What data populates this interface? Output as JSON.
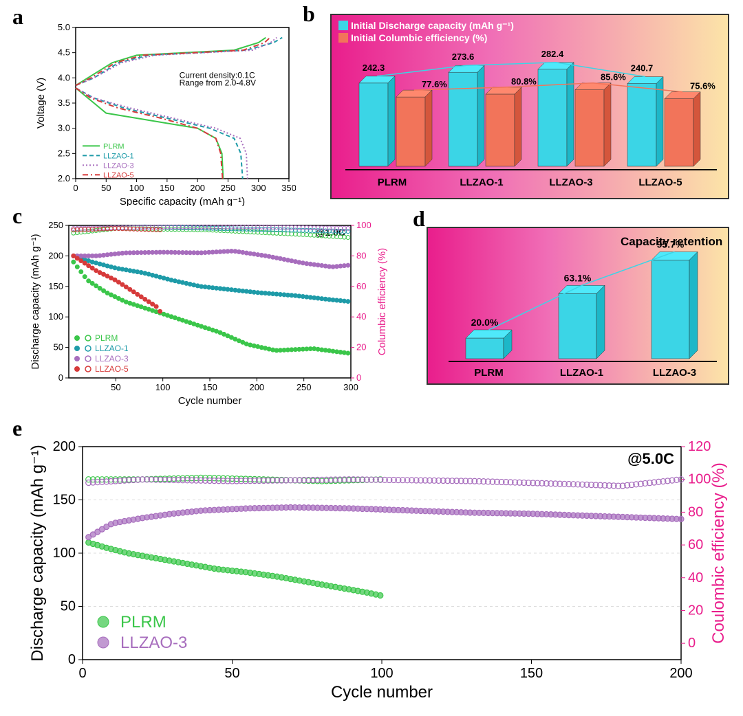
{
  "panelA": {
    "label": "a",
    "type": "line",
    "xlabel": "Specific capacity (mAh g⁻¹)",
    "ylabel": "Voltage (V)",
    "xlim": [
      0,
      350
    ],
    "xticks": [
      0,
      50,
      100,
      150,
      200,
      250,
      300,
      350
    ],
    "ylim": [
      2.0,
      5.0
    ],
    "yticks": [
      2.0,
      2.5,
      3.0,
      3.5,
      4.0,
      4.5,
      5.0
    ],
    "annotation1": "Current density:0.1C",
    "annotation2": "Range from 2.0-4.8V",
    "series": [
      {
        "name": "PLRM",
        "color": "#3bc64a",
        "style": "solid",
        "discharge": [
          [
            0,
            3.8
          ],
          [
            20,
            3.6
          ],
          [
            50,
            3.3
          ],
          [
            100,
            3.2
          ],
          [
            150,
            3.1
          ],
          [
            200,
            3.0
          ],
          [
            230,
            2.8
          ],
          [
            240,
            2.5
          ],
          [
            242,
            2.0
          ]
        ],
        "charge": [
          [
            0,
            3.85
          ],
          [
            20,
            4.0
          ],
          [
            60,
            4.3
          ],
          [
            100,
            4.45
          ],
          [
            180,
            4.5
          ],
          [
            260,
            4.55
          ],
          [
            300,
            4.7
          ],
          [
            312,
            4.8
          ]
        ]
      },
      {
        "name": "LLZAO-1",
        "color": "#1e9ba8",
        "style": "dashed",
        "discharge": [
          [
            0,
            3.8
          ],
          [
            30,
            3.6
          ],
          [
            80,
            3.4
          ],
          [
            150,
            3.2
          ],
          [
            220,
            3.0
          ],
          [
            260,
            2.8
          ],
          [
            271,
            2.5
          ],
          [
            274,
            2.0
          ]
        ],
        "charge": [
          [
            0,
            3.85
          ],
          [
            30,
            4.0
          ],
          [
            70,
            4.3
          ],
          [
            120,
            4.45
          ],
          [
            200,
            4.5
          ],
          [
            280,
            4.55
          ],
          [
            325,
            4.7
          ],
          [
            339,
            4.8
          ]
        ]
      },
      {
        "name": "LLZAO-3",
        "color": "#a76dbd",
        "style": "dotted",
        "discharge": [
          [
            0,
            3.8
          ],
          [
            30,
            3.6
          ],
          [
            90,
            3.4
          ],
          [
            160,
            3.2
          ],
          [
            230,
            3.0
          ],
          [
            270,
            2.8
          ],
          [
            280,
            2.5
          ],
          [
            282,
            2.0
          ]
        ],
        "charge": [
          [
            0,
            3.85
          ],
          [
            30,
            4.0
          ],
          [
            75,
            4.3
          ],
          [
            130,
            4.45
          ],
          [
            210,
            4.5
          ],
          [
            290,
            4.55
          ],
          [
            320,
            4.7
          ],
          [
            330,
            4.8
          ]
        ]
      },
      {
        "name": "LLZAO-5",
        "color": "#d63a3a",
        "style": "dashdot",
        "discharge": [
          [
            0,
            3.8
          ],
          [
            25,
            3.6
          ],
          [
            70,
            3.4
          ],
          [
            140,
            3.2
          ],
          [
            200,
            3.0
          ],
          [
            230,
            2.8
          ],
          [
            238,
            2.5
          ],
          [
            241,
            2.0
          ]
        ],
        "charge": [
          [
            0,
            3.85
          ],
          [
            25,
            4.0
          ],
          [
            65,
            4.3
          ],
          [
            110,
            4.45
          ],
          [
            195,
            4.5
          ],
          [
            275,
            4.55
          ],
          [
            310,
            4.7
          ],
          [
            319,
            4.8
          ]
        ]
      }
    ]
  },
  "panelB": {
    "label": "b",
    "type": "bar3d",
    "legend": [
      "Initial Discharge capacity (mAh g⁻¹)",
      "Initial Columbic efficiency (%)"
    ],
    "legend_colors": [
      "#3bd5e6",
      "#f2745a"
    ],
    "bar_colors": [
      "#3bd5e6",
      "#f2745a"
    ],
    "categories": [
      "PLRM",
      "LLZAO-1",
      "LLZAO-3",
      "LLZAO-5"
    ],
    "capacity": [
      242.3,
      273.6,
      282.4,
      240.7
    ],
    "capacity_max": 300,
    "efficiency": [
      77.6,
      80.8,
      85.6,
      75.6
    ],
    "efficiency_max": 100,
    "cap_labels": [
      "242.3",
      "273.6",
      "282.4",
      "240.7"
    ],
    "eff_labels": [
      "77.6%",
      "80.8%",
      "85.6%",
      "75.6%"
    ],
    "line_colors": [
      "#3bd5e6",
      "#f2745a"
    ]
  },
  "panelC": {
    "label": "c",
    "type": "scatter",
    "xlabel": "Cycle number",
    "ylabel": "Discharge capacity (mAh g⁻¹)",
    "y2label": "Columbic efficiency (%)",
    "rate_label": "@1.0C",
    "xlim": [
      0,
      300
    ],
    "xticks": [
      50,
      100,
      150,
      200,
      250,
      300
    ],
    "ylim": [
      0,
      250
    ],
    "yticks": [
      0,
      50,
      100,
      150,
      200,
      250
    ],
    "y2lim": [
      0,
      100
    ],
    "y2ticks": [
      0,
      20,
      40,
      60,
      80,
      100
    ],
    "legend_colors": [
      "#3bc64a",
      "#1e9ba8",
      "#a76dbd",
      "#d63a3a"
    ],
    "legend_names": [
      "PLRM",
      "LLZAO-1",
      "LLZAO-3",
      "LLZAO-5"
    ],
    "y2_color": "#e91e8c",
    "series": [
      {
        "color": "#3bc64a",
        "marker": "diamond",
        "cap": [
          [
            5,
            190
          ],
          [
            20,
            160
          ],
          [
            40,
            140
          ],
          [
            60,
            125
          ],
          [
            80,
            115
          ],
          [
            100,
            105
          ],
          [
            130,
            90
          ],
          [
            160,
            75
          ],
          [
            190,
            55
          ],
          [
            220,
            45
          ],
          [
            260,
            48
          ],
          [
            300,
            40
          ]
        ],
        "eff": [
          [
            5,
            95
          ],
          [
            50,
            98
          ],
          [
            150,
            97
          ],
          [
            250,
            94
          ],
          [
            300,
            92
          ]
        ]
      },
      {
        "color": "#1e9ba8",
        "marker": "triangle",
        "cap": [
          [
            5,
            200
          ],
          [
            25,
            190
          ],
          [
            50,
            180
          ],
          [
            80,
            172
          ],
          [
            110,
            160
          ],
          [
            140,
            150
          ],
          [
            170,
            145
          ],
          [
            200,
            140
          ],
          [
            240,
            135
          ],
          [
            280,
            128
          ],
          [
            300,
            125
          ]
        ],
        "eff": [
          [
            5,
            97
          ],
          [
            80,
            99
          ],
          [
            160,
            98
          ],
          [
            300,
            96
          ]
        ]
      },
      {
        "color": "#a76dbd",
        "marker": "square",
        "cap": [
          [
            5,
            200
          ],
          [
            30,
            200
          ],
          [
            60,
            205
          ],
          [
            100,
            206
          ],
          [
            140,
            205
          ],
          [
            175,
            208
          ],
          [
            210,
            200
          ],
          [
            250,
            188
          ],
          [
            280,
            182
          ],
          [
            300,
            185
          ]
        ],
        "eff": [
          [
            5,
            98
          ],
          [
            100,
            99
          ],
          [
            200,
            99
          ],
          [
            300,
            98
          ]
        ]
      },
      {
        "color": "#d63a3a",
        "marker": "invtri",
        "cap": [
          [
            5,
            200
          ],
          [
            15,
            190
          ],
          [
            30,
            175
          ],
          [
            50,
            160
          ],
          [
            70,
            140
          ],
          [
            85,
            125
          ],
          [
            95,
            115
          ],
          [
            100,
            100
          ]
        ],
        "eff": [
          [
            5,
            97
          ],
          [
            50,
            98
          ],
          [
            100,
            97
          ]
        ]
      }
    ]
  },
  "panelD": {
    "label": "d",
    "type": "bar3d",
    "title": "Capacity retention",
    "bar_color": "#3bd5e6",
    "categories": [
      "PLRM",
      "LLZAO-1",
      "LLZAO-3"
    ],
    "values": [
      20.0,
      63.1,
      95.7
    ],
    "value_max": 100,
    "labels": [
      "20.0%",
      "63.1%",
      "95.7%"
    ],
    "line_color": "#3bd5e6"
  },
  "panelE": {
    "label": "e",
    "type": "scatter",
    "xlabel": "Cycle number",
    "ylabel": "Discharge capacity (mAh g⁻¹)",
    "y2label": "Coulombic efficiency (%)",
    "rate_label": "@5.0C",
    "xlim": [
      0,
      200
    ],
    "xticks": [
      0,
      50,
      100,
      150,
      200
    ],
    "ylim": [
      0,
      200
    ],
    "yticks": [
      0,
      50,
      100,
      150,
      200
    ],
    "y2lim": [
      -10,
      120
    ],
    "y2ticks": [
      0,
      20,
      40,
      60,
      80,
      100,
      120
    ],
    "y2_color": "#e91e8c",
    "legend": [
      {
        "name": "PLRM",
        "color": "#3bc64a"
      },
      {
        "name": "LLZAO-3",
        "color": "#a76dbd"
      }
    ],
    "grid_color": "#dcdcdc",
    "series": [
      {
        "color": "#3bc64a",
        "cap": [
          [
            2,
            110
          ],
          [
            8,
            105
          ],
          [
            15,
            100
          ],
          [
            25,
            95
          ],
          [
            35,
            90
          ],
          [
            45,
            85
          ],
          [
            55,
            82
          ],
          [
            65,
            78
          ],
          [
            75,
            73
          ],
          [
            85,
            68
          ],
          [
            95,
            63
          ],
          [
            100,
            60
          ]
        ],
        "eff": [
          [
            2,
            100
          ],
          [
            20,
            100
          ],
          [
            40,
            101
          ],
          [
            60,
            100
          ],
          [
            80,
            99
          ],
          [
            100,
            100
          ]
        ]
      },
      {
        "color": "#a76dbd",
        "cap": [
          [
            2,
            115
          ],
          [
            5,
            120
          ],
          [
            10,
            128
          ],
          [
            20,
            133
          ],
          [
            30,
            137
          ],
          [
            40,
            140
          ],
          [
            55,
            142
          ],
          [
            70,
            143
          ],
          [
            90,
            142
          ],
          [
            110,
            140
          ],
          [
            130,
            138
          ],
          [
            150,
            137
          ],
          [
            170,
            135
          ],
          [
            190,
            133
          ],
          [
            200,
            132
          ]
        ],
        "eff": [
          [
            2,
            98
          ],
          [
            20,
            100
          ],
          [
            50,
            99
          ],
          [
            90,
            100
          ],
          [
            130,
            99
          ],
          [
            165,
            97
          ],
          [
            180,
            96
          ],
          [
            200,
            100
          ]
        ]
      }
    ]
  }
}
